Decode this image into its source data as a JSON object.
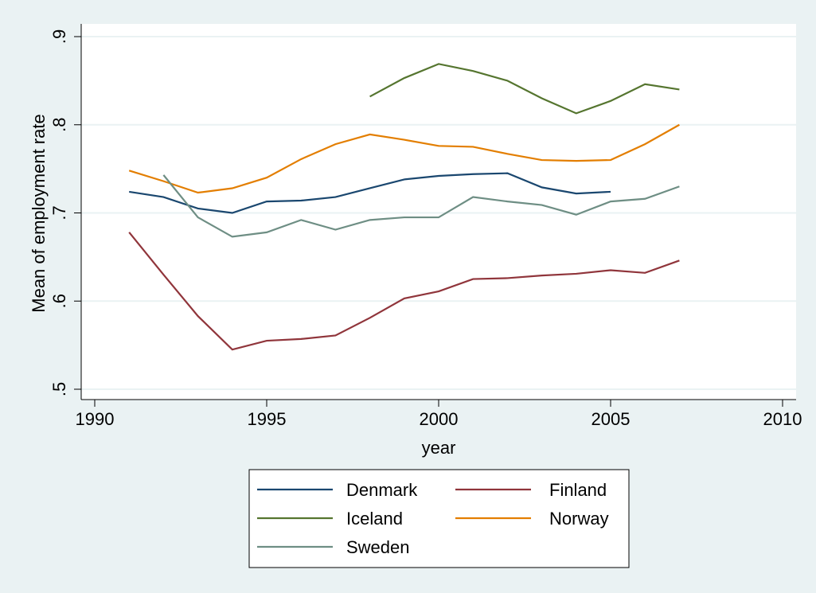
{
  "chart_data": {
    "type": "line",
    "x_label": "year",
    "y_label": "Mean of employment rate",
    "x": [
      1991,
      1992,
      1993,
      1994,
      1995,
      1996,
      1997,
      1998,
      1999,
      2000,
      2001,
      2002,
      2003,
      2004,
      2005,
      2006,
      2007
    ],
    "series": [
      {
        "name": "Denmark",
        "color": "#1a476f",
        "values": [
          0.724,
          0.718,
          0.705,
          0.7,
          0.713,
          0.714,
          0.718,
          0.728,
          0.738,
          0.742,
          0.744,
          0.745,
          0.729,
          0.722,
          0.724,
          null,
          null
        ]
      },
      {
        "name": "Finland",
        "color": "#90353b",
        "values": [
          0.678,
          0.63,
          0.583,
          0.545,
          0.555,
          0.557,
          0.561,
          0.581,
          0.603,
          0.611,
          0.625,
          0.626,
          0.629,
          0.631,
          0.635,
          0.632,
          0.646
        ]
      },
      {
        "name": "Iceland",
        "color": "#55752f",
        "values": [
          null,
          null,
          null,
          null,
          null,
          null,
          null,
          0.832,
          0.853,
          0.869,
          0.861,
          0.85,
          0.83,
          0.813,
          0.827,
          0.846,
          0.84
        ]
      },
      {
        "name": "Norway",
        "color": "#e37e00",
        "values": [
          0.748,
          0.736,
          0.723,
          0.728,
          0.74,
          0.761,
          0.778,
          0.789,
          0.783,
          0.776,
          0.775,
          0.767,
          0.76,
          0.759,
          0.76,
          0.778,
          0.8
        ]
      },
      {
        "name": "Sweden",
        "color": "#6e8e84",
        "values": [
          null,
          0.743,
          0.695,
          0.673,
          0.678,
          0.692,
          0.681,
          0.692,
          0.695,
          0.695,
          0.718,
          0.713,
          0.709,
          0.698,
          0.713,
          0.716,
          0.73
        ]
      }
    ],
    "xlim": [
      1990,
      2010
    ],
    "xticks": [
      1990,
      1995,
      2000,
      2005,
      2010
    ],
    "ylim": [
      0.5,
      0.9
    ],
    "yticks": [
      {
        "value": 0.5,
        "label": ".5"
      },
      {
        "value": 0.6,
        "label": ".6"
      },
      {
        "value": 0.7,
        "label": ".7"
      },
      {
        "value": 0.8,
        "label": ".8"
      },
      {
        "value": 0.9,
        "label": ".9"
      }
    ],
    "grid": true,
    "legend": "bottom"
  }
}
